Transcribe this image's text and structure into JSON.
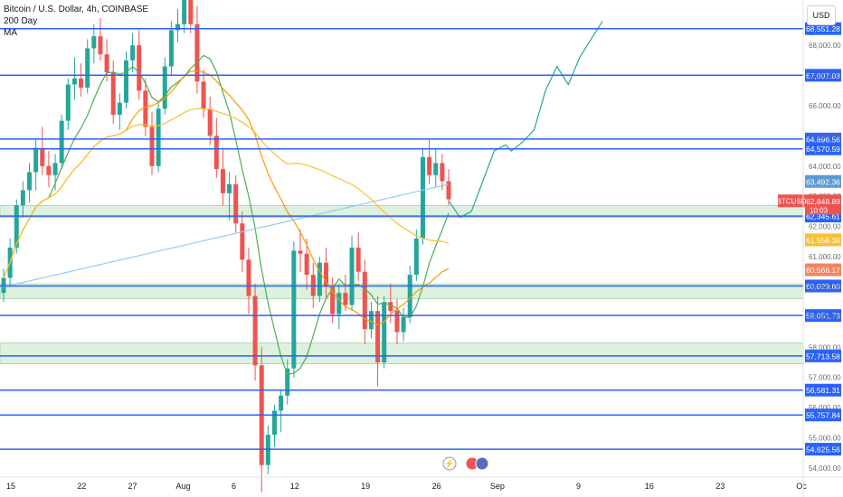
{
  "legend": {
    "symbol_line": "Bitcoin / U.S. Dollar, 4h, COINBASE",
    "indicator_1": "200 Day",
    "indicator_2": "MA"
  },
  "currency": "USD",
  "colors": {
    "up": "#26a69a",
    "down": "#ef5350",
    "level_line": "#2962ff",
    "zone_fill": "#c8e6c9",
    "ma_green": "#4caf50",
    "ma_orange": "#ff9800",
    "ma_yellow": "#fbc02d",
    "ma_lightblue": "#90caf9",
    "projection": "#26a69a"
  },
  "chart_data": {
    "type": "candlestick",
    "title": "Bitcoin / U.S. Dollar, 4h, COINBASE",
    "ylim": [
      53700,
      69500
    ],
    "y_ticks": [
      54000,
      55000,
      56000,
      57000,
      58000,
      59000,
      60000,
      61000,
      62000,
      63000,
      64000,
      65000,
      66000,
      67000,
      68000
    ],
    "y_tick_labels": [
      "54,000.00",
      "55,000.00",
      "56,000.00",
      "57,000.00",
      "58,000.00",
      "59,000.00",
      "60,000.00",
      "61,000.00",
      "62,000.00",
      "63,000.00",
      "64,000.00",
      "65,000.00",
      "66,000.00",
      "67,000.00",
      "68,000.00"
    ],
    "x_ticks": [
      {
        "label": "15",
        "day": 15
      },
      {
        "label": "22",
        "day": 22
      },
      {
        "label": "27",
        "day": 27
      },
      {
        "label": "Aug",
        "day": 32
      },
      {
        "label": "6",
        "day": 37
      },
      {
        "label": "12",
        "day": 43
      },
      {
        "label": "19",
        "day": 50
      },
      {
        "label": "26",
        "day": 57
      },
      {
        "label": "Sep",
        "day": 63
      },
      {
        "label": "9",
        "day": 71
      },
      {
        "label": "16",
        "day": 78
      },
      {
        "label": "23",
        "day": 85
      },
      {
        "label": "Oc",
        "day": 93
      }
    ],
    "horizontal_levels": [
      {
        "value": 68551.28,
        "label": "68,551.28"
      },
      {
        "value": 67007.03,
        "label": "67,007.03"
      },
      {
        "value": 64896.56,
        "label": "64,896.56"
      },
      {
        "value": 64570.59,
        "label": "64,570.59"
      },
      {
        "value": 62345.61,
        "label": "62,345.61"
      },
      {
        "value": 60029.6,
        "label": "60,029.60"
      },
      {
        "value": 59051.73,
        "label": "59,051.73"
      },
      {
        "value": 57713.58,
        "label": "57,713.58"
      },
      {
        "value": 56581.31,
        "label": "56,581.31"
      },
      {
        "value": 55757.84,
        "label": "55,757.84"
      },
      {
        "value": 54625.56,
        "label": "54,625.56"
      }
    ],
    "zones": [
      {
        "from": 62300,
        "to": 62700
      },
      {
        "from": 59600,
        "to": 60100
      },
      {
        "from": 57450,
        "to": 58150
      }
    ],
    "price_badges": [
      {
        "value": 63492.36,
        "label": "63,492.36",
        "color": "#5b9bd5"
      },
      {
        "value": 62848.89,
        "label": "62,848.89",
        "color": "#ef5350",
        "symbol": "BTCUSD",
        "countdown": "10:03"
      },
      {
        "value": 61556.38,
        "label": "61,556.38",
        "color": "#fbc02d"
      },
      {
        "value": 60566.17,
        "label": "60,566.17",
        "color": "#f4845f"
      }
    ],
    "ohlc": [
      [
        59800,
        60600,
        59500,
        60300
      ],
      [
        60300,
        61600,
        60000,
        61300
      ],
      [
        61300,
        62900,
        61100,
        62700
      ],
      [
        62700,
        63500,
        62300,
        63200
      ],
      [
        63200,
        64100,
        62800,
        63800
      ],
      [
        63800,
        64900,
        63200,
        64600
      ],
      [
        64600,
        65300,
        63700,
        64000
      ],
      [
        64000,
        64500,
        63300,
        63700
      ],
      [
        63700,
        64400,
        63200,
        64100
      ],
      [
        64100,
        65700,
        63900,
        65500
      ],
      [
        65500,
        66900,
        65200,
        66700
      ],
      [
        66700,
        67600,
        66200,
        66900
      ],
      [
        66900,
        67400,
        66300,
        66600
      ],
      [
        66600,
        68200,
        66400,
        67900
      ],
      [
        67900,
        68700,
        67400,
        68300
      ],
      [
        68300,
        68900,
        67500,
        67700
      ],
      [
        67700,
        68200,
        66800,
        67100
      ],
      [
        67100,
        67500,
        65400,
        65700
      ],
      [
        65700,
        66400,
        65200,
        66100
      ],
      [
        66100,
        67800,
        65900,
        67500
      ],
      [
        67500,
        68400,
        67100,
        68000
      ],
      [
        68000,
        68500,
        66200,
        66500
      ],
      [
        66500,
        66900,
        65000,
        65300
      ],
      [
        65300,
        65800,
        63700,
        64000
      ],
      [
        64000,
        66100,
        63800,
        65900
      ],
      [
        65900,
        67600,
        65700,
        67300
      ],
      [
        67300,
        68800,
        67000,
        68500
      ],
      [
        68500,
        69200,
        68100,
        68700
      ],
      [
        68700,
        69800,
        68400,
        69500
      ],
      [
        69500,
        70000,
        68400,
        68700
      ],
      [
        68700,
        69300,
        66400,
        66800
      ],
      [
        66800,
        67200,
        65600,
        65900
      ],
      [
        65900,
        66300,
        64700,
        65000
      ],
      [
        65000,
        65600,
        63600,
        63900
      ],
      [
        63900,
        64600,
        62700,
        63100
      ],
      [
        63100,
        63800,
        62200,
        63400
      ],
      [
        63400,
        63700,
        61800,
        62100
      ],
      [
        62100,
        62500,
        60500,
        60900
      ],
      [
        60900,
        61300,
        59100,
        59700
      ],
      [
        59700,
        60100,
        56900,
        57400
      ],
      [
        57400,
        58000,
        53200,
        54100
      ],
      [
        54100,
        55400,
        53800,
        55100
      ],
      [
        55100,
        56100,
        54700,
        55900
      ],
      [
        55900,
        56600,
        55200,
        56400
      ],
      [
        56400,
        57600,
        56100,
        57300
      ],
      [
        57300,
        61500,
        57000,
        61200
      ],
      [
        61200,
        61900,
        60500,
        61100
      ],
      [
        61100,
        61600,
        59900,
        60400
      ],
      [
        60400,
        60800,
        59300,
        59700
      ],
      [
        59700,
        61000,
        59500,
        60800
      ],
      [
        60800,
        61300,
        59600,
        60000
      ],
      [
        60000,
        60300,
        58800,
        59100
      ],
      [
        59100,
        60100,
        58600,
        59800
      ],
      [
        59800,
        60400,
        59200,
        59400
      ],
      [
        59400,
        61700,
        59200,
        61300
      ],
      [
        61300,
        61800,
        60200,
        60500
      ],
      [
        60500,
        60900,
        58100,
        58600
      ],
      [
        58600,
        59500,
        58300,
        59200
      ],
      [
        59200,
        59700,
        56700,
        57500
      ],
      [
        57500,
        59700,
        57300,
        59500
      ],
      [
        59500,
        60100,
        58800,
        59200
      ],
      [
        59200,
        59600,
        58100,
        58500
      ],
      [
        58500,
        59300,
        58200,
        59000
      ],
      [
        59000,
        60700,
        58800,
        60400
      ],
      [
        60400,
        61900,
        60200,
        61600
      ],
      [
        61600,
        64600,
        61400,
        64300
      ],
      [
        64300,
        64900,
        63400,
        63700
      ],
      [
        63700,
        64600,
        63300,
        64100
      ],
      [
        64100,
        64400,
        63200,
        63500
      ],
      [
        63500,
        63900,
        62700,
        62900
      ]
    ],
    "projection": [
      [
        62848,
        0
      ],
      [
        62300,
        2
      ],
      [
        62500,
        4
      ],
      [
        63500,
        6
      ],
      [
        64500,
        8
      ],
      [
        64700,
        10
      ],
      [
        64500,
        11
      ],
      [
        64800,
        13
      ],
      [
        65200,
        15
      ],
      [
        66500,
        17
      ],
      [
        67300,
        19
      ],
      [
        66700,
        21
      ],
      [
        67600,
        23
      ],
      [
        68200,
        25
      ],
      [
        68800,
        27
      ]
    ]
  }
}
